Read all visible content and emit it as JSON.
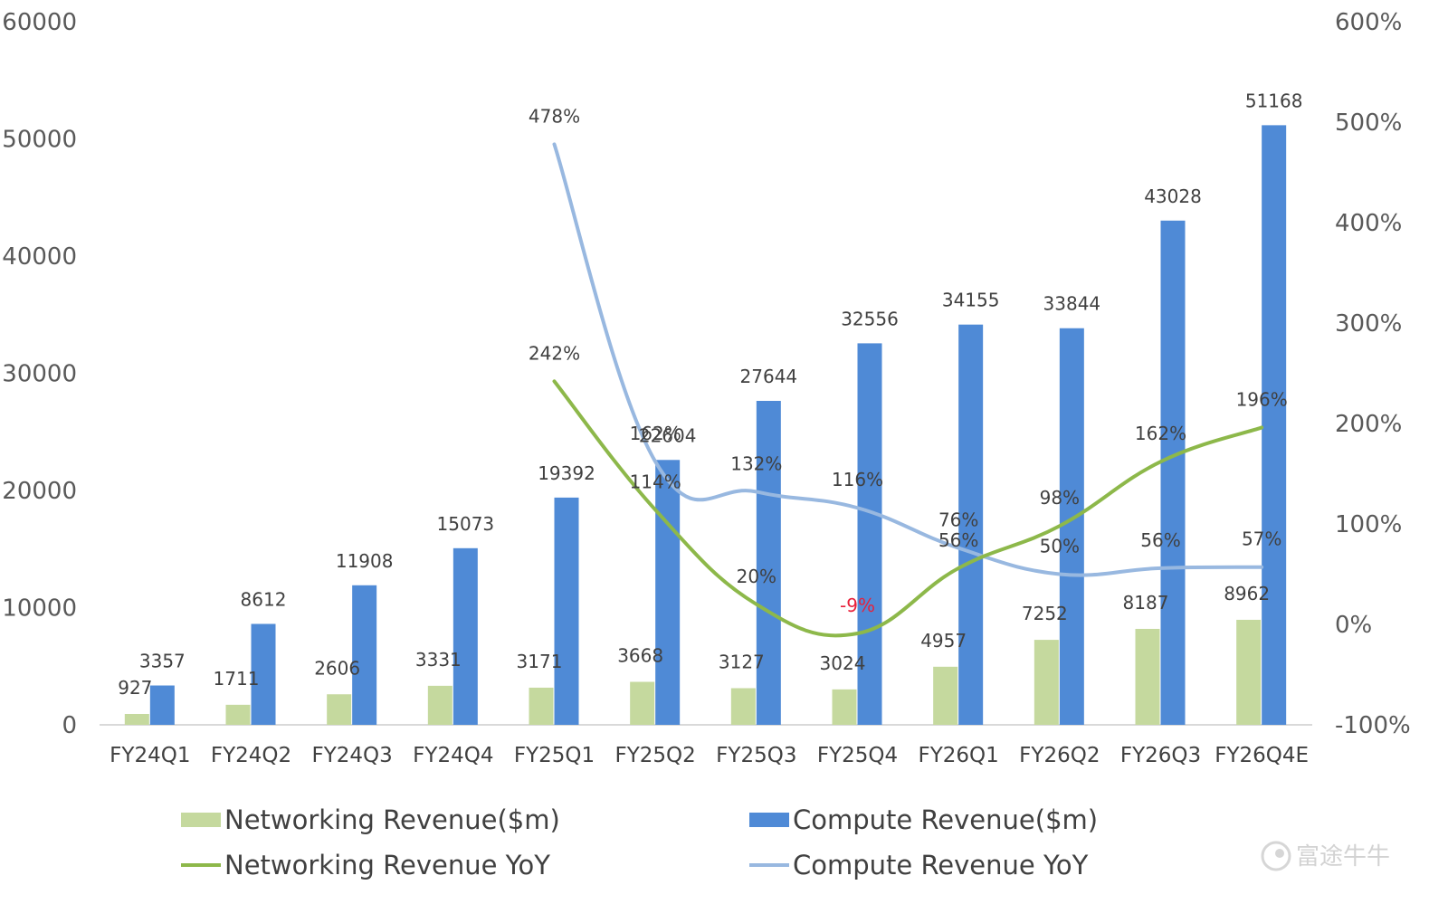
{
  "chart_data": {
    "type": "bar",
    "categories": [
      "FY24Q1",
      "FY24Q2",
      "FY24Q3",
      "FY24Q4",
      "FY25Q1",
      "FY25Q2",
      "FY25Q3",
      "FY25Q4",
      "FY26Q1",
      "FY26Q2",
      "FY26Q3",
      "FY26Q4E"
    ],
    "y_left": {
      "ylim": [
        0,
        60000
      ],
      "ticks": [
        "0",
        "10000",
        "20000",
        "30000",
        "40000",
        "50000",
        "60000"
      ]
    },
    "y_right": {
      "ylim": [
        -100,
        600
      ],
      "ticks": [
        "-100%",
        "0%",
        "100%",
        "200%",
        "300%",
        "400%",
        "500%",
        "600%"
      ]
    },
    "series": [
      {
        "name": "Networking Revenue($m)",
        "kind": "bar",
        "axis": "left",
        "color": "#c5d99e",
        "values": [
          927,
          1711,
          2606,
          3331,
          3171,
          3668,
          3127,
          3024,
          4957,
          7252,
          8187,
          8962
        ],
        "labels": [
          "927",
          "1711",
          "2606",
          "3331",
          "3171",
          "3668",
          "3127",
          "3024",
          "4957",
          "7252",
          "8187",
          "8962"
        ]
      },
      {
        "name": "Compute Revenue($m)",
        "kind": "bar",
        "axis": "left",
        "color": "#4f8ad6",
        "values": [
          3357,
          8612,
          11908,
          15073,
          19392,
          22604,
          27644,
          32556,
          34155,
          33844,
          43028,
          51168
        ],
        "labels": [
          "3357",
          "8612",
          "11908",
          "15073",
          "19392",
          "22604",
          "27644",
          "32556",
          "34155",
          "33844",
          "43028",
          "51168"
        ]
      },
      {
        "name": "Networking Revenue YoY",
        "kind": "line",
        "axis": "right",
        "color": "#8db84a",
        "values": [
          null,
          null,
          null,
          null,
          242,
          114,
          20,
          -9,
          56,
          98,
          162,
          196
        ],
        "labels": [
          "",
          "",
          "",
          "",
          "242%",
          "114%",
          "20%",
          "-9%",
          "56%",
          "98%",
          "162%",
          "196%"
        ]
      },
      {
        "name": "Compute Revenue YoY",
        "kind": "line",
        "axis": "right",
        "color": "#98b8e0",
        "values": [
          null,
          null,
          null,
          null,
          478,
          162,
          132,
          116,
          76,
          50,
          56,
          57
        ],
        "labels": [
          "",
          "",
          "",
          "",
          "478%",
          "162%",
          "132%",
          "116%",
          "76%",
          "50%",
          "56%",
          "57%"
        ]
      }
    ],
    "negative_label_color": "#e8203a",
    "legend_position": "bottom"
  },
  "watermark": {
    "text": "富途牛牛",
    "icon": "futu-logo-icon"
  }
}
